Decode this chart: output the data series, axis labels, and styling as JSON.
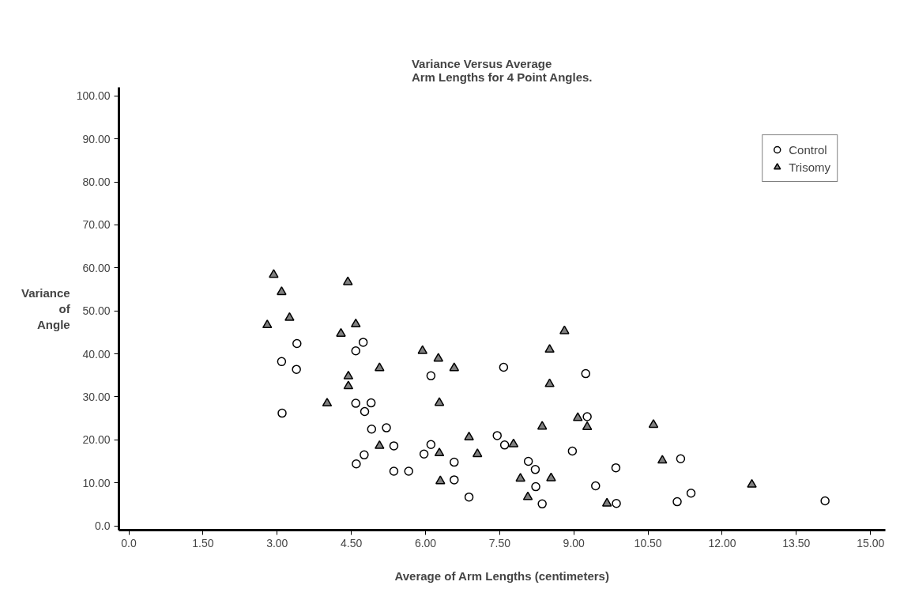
{
  "chart_data": {
    "type": "scatter",
    "title": "Variance Versus Average\nArm Lengths for 4 Point Angles.",
    "xlabel": "Average of Arm Lengths (centimeters)",
    "ylabel": "Variance\nof\nAngle",
    "xlim": [
      -0.2,
      15.3
    ],
    "ylim": [
      -1,
      102
    ],
    "xticks": [
      {
        "value": 0,
        "label": "0.0"
      },
      {
        "value": 1.5,
        "label": "1.50"
      },
      {
        "value": 3,
        "label": "3.00"
      },
      {
        "value": 4.5,
        "label": "4.50"
      },
      {
        "value": 6,
        "label": "6.00"
      },
      {
        "value": 7.5,
        "label": "7.50"
      },
      {
        "value": 9,
        "label": "9.00"
      },
      {
        "value": 10.5,
        "label": "10.50"
      },
      {
        "value": 12,
        "label": "12.00"
      },
      {
        "value": 13.5,
        "label": "13.50"
      },
      {
        "value": 15,
        "label": "15.00"
      }
    ],
    "yticks": [
      {
        "value": 0,
        "label": "0.0"
      },
      {
        "value": 10,
        "label": "10.00"
      },
      {
        "value": 20,
        "label": "20.00"
      },
      {
        "value": 30,
        "label": "30.00"
      },
      {
        "value": 40,
        "label": "40.00"
      },
      {
        "value": 50,
        "label": "50.00"
      },
      {
        "value": 60,
        "label": "60.00"
      },
      {
        "value": 70,
        "label": "70.00"
      },
      {
        "value": 80,
        "label": "80.00"
      },
      {
        "value": 90,
        "label": "90.00"
      },
      {
        "value": 100,
        "label": "100.00"
      }
    ],
    "grid": false,
    "legend": "top right",
    "series": [
      {
        "name": "Control",
        "color": "#000000",
        "marker": "circle",
        "x": [
          3.4,
          4.74,
          4.59,
          3.09,
          3.39,
          3.1,
          4.59,
          4.9,
          4.77,
          4.91,
          5.21,
          5.36,
          4.76,
          4.6,
          5.36,
          5.66,
          7.58,
          9.24,
          6.11,
          9.27,
          7.45,
          7.6,
          6.11,
          5.97,
          8.97,
          6.58,
          8.08,
          8.22,
          9.85,
          11.16,
          6.58,
          8.23,
          9.44,
          6.88,
          8.36,
          9.86,
          11.09,
          11.37,
          14.08
        ],
        "values": [
          42.4,
          42.7,
          40.7,
          38.2,
          36.4,
          26.2,
          28.5,
          28.6,
          26.6,
          22.5,
          22.8,
          18.6,
          16.5,
          14.4,
          12.7,
          12.7,
          36.9,
          35.4,
          34.9,
          25.4,
          21.0,
          18.8,
          18.9,
          16.7,
          17.4,
          14.8,
          15.0,
          13.1,
          13.5,
          15.6,
          10.7,
          9.1,
          9.3,
          6.7,
          5.1,
          5.2,
          5.6,
          7.6,
          5.8
        ]
      },
      {
        "name": "Trisomy",
        "color": "#808080",
        "marker": "triangle",
        "x": [
          2.93,
          4.43,
          3.09,
          3.25,
          2.8,
          4.59,
          4.29,
          5.94,
          5.07,
          4.44,
          4.44,
          4.01,
          5.07,
          8.81,
          8.51,
          6.26,
          6.58,
          8.51,
          6.28,
          9.08,
          9.27,
          8.36,
          10.61,
          6.88,
          7.78,
          6.28,
          7.05,
          10.79,
          7.92,
          8.54,
          6.3,
          8.07,
          9.67,
          12.6
        ],
        "values": [
          58.4,
          56.7,
          54.4,
          48.4,
          46.7,
          46.9,
          44.7,
          40.7,
          36.7,
          34.8,
          32.5,
          28.5,
          18.6,
          45.3,
          41.0,
          38.9,
          36.7,
          33.0,
          28.6,
          25.1,
          23.0,
          23.1,
          23.5,
          20.6,
          19.0,
          16.9,
          16.7,
          15.2,
          11.0,
          11.1,
          10.4,
          6.7,
          5.2,
          9.6
        ]
      }
    ]
  }
}
